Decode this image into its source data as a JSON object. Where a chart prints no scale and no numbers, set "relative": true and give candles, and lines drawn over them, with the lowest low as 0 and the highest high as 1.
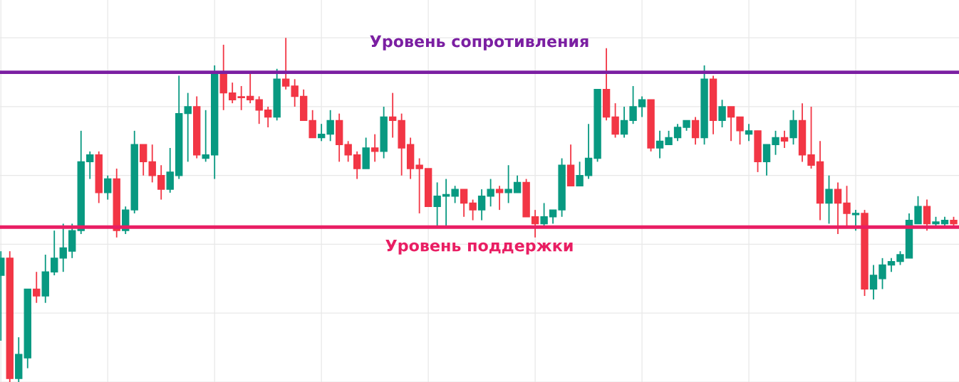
{
  "chart_data": {
    "type": "candlestick",
    "relative": true,
    "grid": true,
    "categories": [
      null,
      null,
      null,
      null,
      null,
      null,
      null,
      null,
      null,
      null,
      null,
      null,
      null,
      null,
      null,
      null,
      null,
      null,
      null,
      null,
      null,
      null,
      null,
      null,
      null,
      null,
      null,
      null,
      null,
      null,
      null,
      null,
      null,
      null,
      null,
      null,
      null,
      null,
      null,
      null,
      null,
      null,
      null,
      null,
      null,
      null,
      null,
      null,
      null,
      null,
      null,
      null,
      null,
      null,
      null,
      null,
      null,
      null,
      null,
      null,
      null,
      null,
      null,
      null,
      null,
      null,
      null,
      null,
      null,
      null,
      null,
      null,
      null,
      null,
      null,
      null,
      null,
      null,
      null,
      null,
      null,
      null,
      null,
      null,
      null,
      null,
      null,
      null,
      null,
      null,
      null,
      null,
      null,
      null,
      null,
      null,
      null,
      null,
      null,
      null,
      null,
      null,
      null,
      null,
      null,
      null,
      null,
      null
    ],
    "ohlc": [
      [
        0.31,
        0.38,
        0.12,
        0.36
      ],
      [
        0.36,
        0.38,
        0.0,
        0.01
      ],
      [
        0.01,
        0.13,
        0.0,
        0.08
      ],
      [
        0.07,
        0.27,
        0.04,
        0.27
      ],
      [
        0.27,
        0.32,
        0.23,
        0.25
      ],
      [
        0.25,
        0.37,
        0.23,
        0.32
      ],
      [
        0.32,
        0.44,
        0.31,
        0.36
      ],
      [
        0.36,
        0.46,
        0.32,
        0.39
      ],
      [
        0.38,
        0.46,
        0.36,
        0.44
      ],
      [
        0.44,
        0.73,
        0.43,
        0.64
      ],
      [
        0.64,
        0.67,
        0.59,
        0.66
      ],
      [
        0.66,
        0.67,
        0.52,
        0.55
      ],
      [
        0.55,
        0.6,
        0.53,
        0.59
      ],
      [
        0.59,
        0.62,
        0.42,
        0.44
      ],
      [
        0.44,
        0.51,
        0.43,
        0.5
      ],
      [
        0.5,
        0.73,
        0.49,
        0.69
      ],
      [
        0.69,
        0.69,
        0.6,
        0.64
      ],
      [
        0.64,
        0.69,
        0.58,
        0.6
      ],
      [
        0.6,
        0.63,
        0.53,
        0.56
      ],
      [
        0.56,
        0.68,
        0.55,
        0.61
      ],
      [
        0.6,
        0.89,
        0.59,
        0.78
      ],
      [
        0.78,
        0.84,
        0.64,
        0.8
      ],
      [
        0.8,
        0.83,
        0.65,
        0.66
      ],
      [
        0.65,
        0.79,
        0.64,
        0.66
      ],
      [
        0.66,
        0.92,
        0.59,
        0.9
      ],
      [
        0.9,
        0.98,
        0.79,
        0.84
      ],
      [
        0.84,
        0.87,
        0.81,
        0.82
      ],
      [
        0.829,
        0.86,
        0.79,
        0.826
      ],
      [
        0.83,
        0.9,
        0.81,
        0.82
      ],
      [
        0.82,
        0.83,
        0.75,
        0.79
      ],
      [
        0.79,
        0.8,
        0.74,
        0.77
      ],
      [
        0.77,
        0.91,
        0.76,
        0.88
      ],
      [
        0.88,
        1.0,
        0.85,
        0.86
      ],
      [
        0.86,
        0.88,
        0.8,
        0.83
      ],
      [
        0.83,
        0.85,
        0.76,
        0.76
      ],
      [
        0.76,
        0.79,
        0.71,
        0.71
      ],
      [
        0.71,
        0.75,
        0.7,
        0.72
      ],
      [
        0.72,
        0.79,
        0.7,
        0.76
      ],
      [
        0.76,
        0.78,
        0.64,
        0.69
      ],
      [
        0.69,
        0.7,
        0.64,
        0.66
      ],
      [
        0.66,
        0.67,
        0.59,
        0.62
      ],
      [
        0.62,
        0.71,
        0.62,
        0.68
      ],
      [
        0.68,
        0.72,
        0.64,
        0.67
      ],
      [
        0.67,
        0.8,
        0.65,
        0.77
      ],
      [
        0.77,
        0.84,
        0.71,
        0.76
      ],
      [
        0.76,
        0.78,
        0.6,
        0.68
      ],
      [
        0.69,
        0.71,
        0.59,
        0.62
      ],
      [
        0.63,
        0.65,
        0.49,
        0.62
      ],
      [
        0.62,
        0.62,
        0.51,
        0.51
      ],
      [
        0.51,
        0.58,
        0.45,
        0.54
      ],
      [
        0.54,
        0.59,
        0.45,
        0.545
      ],
      [
        0.54,
        0.57,
        0.52,
        0.56
      ],
      [
        0.56,
        0.56,
        0.48,
        0.52
      ],
      [
        0.52,
        0.53,
        0.47,
        0.5
      ],
      [
        0.5,
        0.56,
        0.47,
        0.54
      ],
      [
        0.54,
        0.59,
        0.51,
        0.56
      ],
      [
        0.56,
        0.57,
        0.5,
        0.55
      ],
      [
        0.55,
        0.63,
        0.52,
        0.56
      ],
      [
        0.55,
        0.6,
        0.55,
        0.58
      ],
      [
        0.58,
        0.59,
        0.48,
        0.48
      ],
      [
        0.48,
        0.5,
        0.42,
        0.46
      ],
      [
        0.46,
        0.52,
        0.45,
        0.48
      ],
      [
        0.48,
        0.5,
        0.46,
        0.5
      ],
      [
        0.5,
        0.65,
        0.48,
        0.63
      ],
      [
        0.63,
        0.69,
        0.57,
        0.57
      ],
      [
        0.57,
        0.64,
        0.57,
        0.6
      ],
      [
        0.6,
        0.75,
        0.59,
        0.65
      ],
      [
        0.65,
        0.85,
        0.64,
        0.85
      ],
      [
        0.85,
        0.97,
        0.76,
        0.77
      ],
      [
        0.77,
        0.81,
        0.71,
        0.72
      ],
      [
        0.72,
        0.8,
        0.71,
        0.76
      ],
      [
        0.76,
        0.86,
        0.75,
        0.8
      ],
      [
        0.8,
        0.83,
        0.77,
        0.82
      ],
      [
        0.82,
        0.82,
        0.67,
        0.68
      ],
      [
        0.68,
        0.73,
        0.65,
        0.7
      ],
      [
        0.69,
        0.73,
        0.69,
        0.71
      ],
      [
        0.71,
        0.75,
        0.7,
        0.74
      ],
      [
        0.74,
        0.76,
        0.73,
        0.76
      ],
      [
        0.76,
        0.77,
        0.69,
        0.71
      ],
      [
        0.71,
        0.92,
        0.69,
        0.88
      ],
      [
        0.88,
        0.89,
        0.72,
        0.76
      ],
      [
        0.76,
        0.82,
        0.74,
        0.8
      ],
      [
        0.8,
        0.8,
        0.7,
        0.77
      ],
      [
        0.77,
        0.77,
        0.69,
        0.73
      ],
      [
        0.72,
        0.75,
        0.7,
        0.73
      ],
      [
        0.73,
        0.73,
        0.61,
        0.64
      ],
      [
        0.64,
        0.69,
        0.6,
        0.69
      ],
      [
        0.69,
        0.73,
        0.66,
        0.71
      ],
      [
        0.71,
        0.73,
        0.68,
        0.7
      ],
      [
        0.71,
        0.79,
        0.69,
        0.76
      ],
      [
        0.76,
        0.81,
        0.64,
        0.66
      ],
      [
        0.66,
        0.8,
        0.62,
        0.63
      ],
      [
        0.64,
        0.7,
        0.47,
        0.52
      ],
      [
        0.52,
        0.6,
        0.46,
        0.56
      ],
      [
        0.56,
        0.58,
        0.43,
        0.52
      ],
      [
        0.52,
        0.57,
        0.45,
        0.49
      ],
      [
        0.486,
        0.5,
        0.44,
        0.49
      ],
      [
        0.49,
        0.5,
        0.25,
        0.27
      ],
      [
        0.27,
        0.34,
        0.24,
        0.31
      ],
      [
        0.3,
        0.36,
        0.27,
        0.34
      ],
      [
        0.34,
        0.36,
        0.32,
        0.35
      ],
      [
        0.35,
        0.38,
        0.34,
        0.37
      ],
      [
        0.36,
        0.49,
        0.36,
        0.47
      ],
      [
        0.46,
        0.54,
        0.46,
        0.51
      ],
      [
        0.51,
        0.53,
        0.44,
        0.46
      ],
      [
        0.46,
        0.48,
        0.45,
        0.465
      ],
      [
        0.46,
        0.48,
        0.45,
        0.47
      ],
      [
        0.47,
        0.48,
        0.45,
        0.46
      ]
    ],
    "ref_lines": [
      {
        "axis": "y",
        "value": 0.9,
        "label": "Уровень сопротивления",
        "color": "#7b1fa2"
      },
      {
        "axis": "y",
        "value": 0.45,
        "label": "Уровень поддержки",
        "color": "#e91e63"
      }
    ]
  }
}
